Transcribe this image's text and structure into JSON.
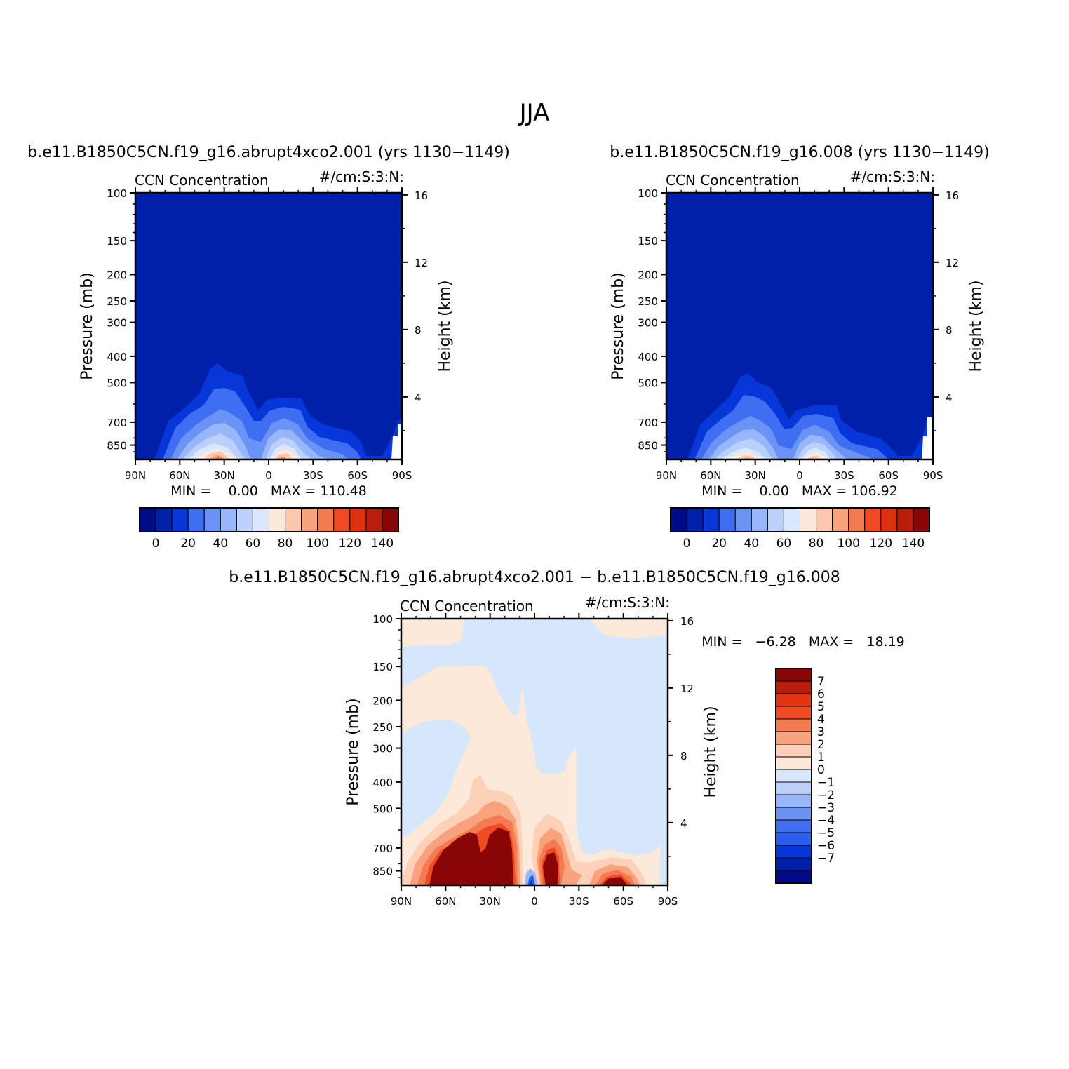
{
  "page_title": "JJA",
  "colors": {
    "main": [
      "#000b8a",
      "#0020aa",
      "#0736d9",
      "#3f6ef2",
      "#6b93f5",
      "#98b6fa",
      "#bcd0fc",
      "#d9e8fd",
      "#fde9dc",
      "#fcc7ad",
      "#f9a37e",
      "#f47a50",
      "#ef4a24",
      "#dc3010",
      "#b91d0c",
      "#8a0505"
    ],
    "diff": [
      "#000b8a",
      "#0020aa",
      "#0736d9",
      "#2c5ced",
      "#3f6ef2",
      "#6b93f5",
      "#98b6fa",
      "#bcd0fc",
      "#d6e7fc",
      "#fde9da",
      "#fcd1b8",
      "#f9a37e",
      "#f47a50",
      "#ef4a24",
      "#e43512",
      "#b91d0c",
      "#8a0505"
    ]
  },
  "panels": [
    {
      "id": "left",
      "title": "b.e11.B1850C5CN.f19_g16.abrupt4xco2.001 (yrs 1130−1149)",
      "var_label": "CCN Concentration",
      "units": "#/cm:S:3:N:",
      "ylabel": "Pressure (mb)",
      "ylabel2": "Height (km)",
      "minmax": "MIN =    0.00   MAX = 110.48",
      "x_ticks": [
        "90N",
        "60N",
        "30N",
        "0",
        "30S",
        "60S",
        "90S"
      ],
      "y_ticks": [
        "100",
        "150",
        "200",
        "250",
        "300",
        "400",
        "500",
        "700",
        "850"
      ],
      "y2_ticks": [
        "16",
        "12",
        "8",
        "4"
      ],
      "cb_labels": [
        "0",
        "20",
        "40",
        "60",
        "80",
        "100",
        "120",
        "140"
      ]
    },
    {
      "id": "right",
      "title": "b.e11.B1850C5CN.f19_g16.008 (yrs 1130−1149)",
      "var_label": "CCN Concentration",
      "units": "#/cm:S:3:N:",
      "ylabel": "Pressure (mb)",
      "ylabel2": "Height (km)",
      "minmax": "MIN =    0.00   MAX = 106.92",
      "x_ticks": [
        "90N",
        "60N",
        "30N",
        "0",
        "30S",
        "60S",
        "90S"
      ],
      "y_ticks": [
        "100",
        "150",
        "200",
        "250",
        "300",
        "400",
        "500",
        "700",
        "850"
      ],
      "y2_ticks": [
        "16",
        "12",
        "8",
        "4"
      ],
      "cb_labels": [
        "0",
        "20",
        "40",
        "60",
        "80",
        "100",
        "120",
        "140"
      ]
    },
    {
      "id": "diff",
      "title": "b.e11.B1850C5CN.f19_g16.abrupt4xco2.001 − b.e11.B1850C5CN.f19_g16.008",
      "var_label": "CCN Concentration",
      "units": "#/cm:S:3:N:",
      "ylabel": "Pressure (mb)",
      "ylabel2": "Height (km)",
      "minmax": "MIN =   −6.28   MAX =   18.19",
      "x_ticks": [
        "90N",
        "60N",
        "30N",
        "0",
        "30S",
        "60S",
        "90S"
      ],
      "y_ticks": [
        "100",
        "150",
        "200",
        "250",
        "300",
        "400",
        "500",
        "700",
        "850"
      ],
      "y2_ticks": [
        "16",
        "12",
        "8",
        "4"
      ],
      "cb_labels": [
        "7",
        "6",
        "5",
        "4",
        "3",
        "2",
        "1",
        "0",
        "−1",
        "−2",
        "−3",
        "−4",
        "−5",
        "−6",
        "−7"
      ]
    }
  ],
  "chart_data": [
    {
      "type": "heatmap",
      "title": "b.e11.B1850C5CN.f19_g16.abrupt4xco2.001 (yrs 1130−1149)",
      "subtitle": "CCN Concentration",
      "units": "#/cm:S:3:N:",
      "xlabel": "",
      "ylabel": "Pressure (mb)",
      "ylabel_right": "Height (km)",
      "x_ticks": [
        "90N",
        "60N",
        "30N",
        "0",
        "30S",
        "60S",
        "90S"
      ],
      "y_ticks_mb": [
        100,
        150,
        200,
        250,
        300,
        400,
        500,
        700,
        850
      ],
      "y_log_scale": true,
      "contour_levels": [
        0,
        10,
        20,
        30,
        40,
        50,
        60,
        70,
        80,
        90,
        100,
        110,
        120,
        130,
        140
      ],
      "min": 0.0,
      "max": 110.48
    },
    {
      "type": "heatmap",
      "title": "b.e11.B1850C5CN.f19_g16.008 (yrs 1130−1149)",
      "subtitle": "CCN Concentration",
      "units": "#/cm:S:3:N:",
      "xlabel": "",
      "ylabel": "Pressure (mb)",
      "ylabel_right": "Height (km)",
      "x_ticks": [
        "90N",
        "60N",
        "30N",
        "0",
        "30S",
        "60S",
        "90S"
      ],
      "y_ticks_mb": [
        100,
        150,
        200,
        250,
        300,
        400,
        500,
        700,
        850
      ],
      "y_log_scale": true,
      "contour_levels": [
        0,
        10,
        20,
        30,
        40,
        50,
        60,
        70,
        80,
        90,
        100,
        110,
        120,
        130,
        140
      ],
      "min": 0.0,
      "max": 106.92
    },
    {
      "type": "heatmap",
      "title": "b.e11.B1850C5CN.f19_g16.abrupt4xco2.001 − b.e11.B1850C5CN.f19_g16.008",
      "subtitle": "CCN Concentration",
      "units": "#/cm:S:3:N:",
      "xlabel": "",
      "ylabel": "Pressure (mb)",
      "ylabel_right": "Height (km)",
      "x_ticks": [
        "90N",
        "60N",
        "30N",
        "0",
        "30S",
        "60S",
        "90S"
      ],
      "y_ticks_mb": [
        100,
        150,
        200,
        250,
        300,
        400,
        500,
        700,
        850
      ],
      "y_log_scale": true,
      "contour_levels": [
        -7,
        -6,
        -5,
        -4,
        -3,
        -2,
        -1,
        0,
        1,
        2,
        3,
        4,
        5,
        6,
        7
      ],
      "min": -6.28,
      "max": 18.19
    }
  ]
}
